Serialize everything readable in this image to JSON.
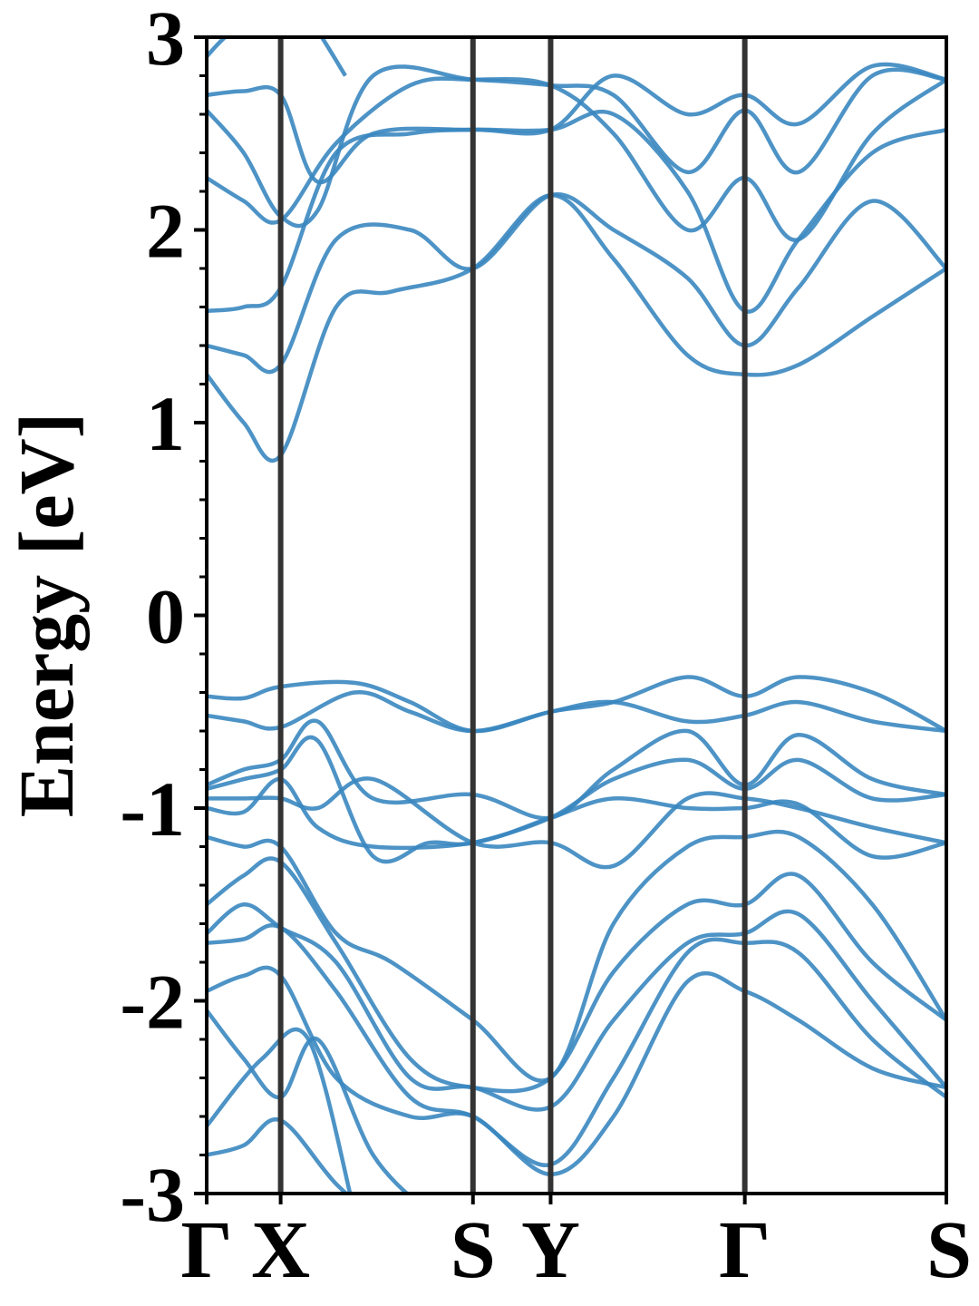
{
  "chart_data": {
    "type": "line",
    "title": "",
    "xlabel": "",
    "ylabel": "Energy [eV]",
    "ylim": [
      -3,
      3
    ],
    "yticks": [
      -3,
      -2,
      -1,
      0,
      1,
      2,
      3
    ],
    "y_minor_step": 0.2,
    "grid": false,
    "legend": "none",
    "colors": {
      "band": "#3a87c0",
      "kline": "#333333",
      "axis": "#000000"
    },
    "kpoints": [
      {
        "label": "Γ",
        "k": 0.0
      },
      {
        "label": "X",
        "k": 0.4
      },
      {
        "label": "S",
        "k": 1.44
      },
      {
        "label": "Y",
        "k": 1.86
      },
      {
        "label": "Γ",
        "k": 2.91
      },
      {
        "label": "S",
        "k": 4.0
      }
    ],
    "bands": [
      {
        "k": [
          0,
          0.2,
          0.4,
          0.7,
          1.0,
          1.44,
          1.86,
          2.2,
          2.6,
          2.91,
          3.2,
          3.6,
          4.0
        ],
        "e": [
          1.25,
          1.0,
          0.83,
          1.6,
          1.68,
          1.8,
          2.18,
          1.85,
          1.35,
          1.25,
          1.3,
          1.55,
          1.8
        ]
      },
      {
        "k": [
          0,
          0.2,
          0.4,
          0.7,
          1.1,
          1.44,
          1.86,
          2.2,
          2.6,
          2.91,
          3.2,
          3.6,
          4.0
        ],
        "e": [
          1.4,
          1.35,
          1.3,
          1.95,
          2.0,
          1.8,
          2.18,
          2.0,
          1.75,
          1.4,
          1.7,
          2.15,
          1.8
        ]
      },
      {
        "k": [
          0,
          0.2,
          0.4,
          0.7,
          1.1,
          1.44,
          1.86,
          2.2,
          2.6,
          2.91,
          3.2,
          3.6,
          4.0
        ],
        "e": [
          1.58,
          1.6,
          1.7,
          2.4,
          2.5,
          2.52,
          2.52,
          2.6,
          2.2,
          1.58,
          1.95,
          2.4,
          2.52
        ]
      },
      {
        "k": [
          0,
          0.2,
          0.4,
          0.7,
          1.1,
          1.44,
          1.86,
          2.2,
          2.6,
          2.91,
          3.2,
          3.6,
          4.0
        ],
        "e": [
          2.27,
          2.15,
          2.05,
          2.45,
          2.75,
          2.78,
          2.75,
          2.5,
          2.0,
          2.27,
          1.95,
          2.5,
          2.78
        ]
      },
      {
        "k": [
          0,
          0.2,
          0.4,
          0.6,
          0.9,
          1.44,
          1.86,
          2.2,
          2.6,
          2.91,
          3.2,
          3.6,
          4.0
        ],
        "e": [
          2.62,
          2.4,
          2.07,
          2.1,
          2.8,
          2.78,
          2.75,
          2.7,
          2.3,
          2.62,
          2.3,
          2.8,
          2.78
        ]
      },
      {
        "k": [
          0,
          0.2,
          0.4,
          0.6,
          0.9,
          1.44,
          1.86,
          2.2,
          2.6,
          2.91,
          3.2,
          3.6,
          4.0
        ],
        "e": [
          2.7,
          2.72,
          2.7,
          2.25,
          2.5,
          2.52,
          2.52,
          2.8,
          2.6,
          2.7,
          2.55,
          2.85,
          2.78
        ]
      },
      {
        "k": [
          0,
          0.1,
          0.25,
          0.4,
          0.55,
          0.75
        ],
        "e": [
          2.9,
          3.0,
          3.1,
          3.2,
          3.1,
          2.8
        ]
      },
      {
        "k": [
          0,
          0.2,
          0.4,
          0.8,
          1.1,
          1.44,
          1.86,
          2.2,
          2.6,
          2.91,
          3.2,
          3.6,
          4.0
        ],
        "e": [
          -0.42,
          -0.43,
          -0.37,
          -0.35,
          -0.45,
          -0.6,
          -0.5,
          -0.45,
          -0.32,
          -0.42,
          -0.32,
          -0.4,
          -0.6
        ]
      },
      {
        "k": [
          0,
          0.2,
          0.4,
          0.8,
          1.1,
          1.44,
          1.86,
          2.2,
          2.6,
          2.91,
          3.2,
          3.6,
          4.0
        ],
        "e": [
          -0.52,
          -0.55,
          -0.58,
          -0.4,
          -0.5,
          -0.6,
          -0.5,
          -0.45,
          -0.55,
          -0.52,
          -0.45,
          -0.55,
          -0.6
        ]
      },
      {
        "k": [
          0,
          0.2,
          0.4,
          0.6,
          0.9,
          1.44,
          1.86,
          2.2,
          2.6,
          2.91,
          3.2,
          3.6,
          4.0
        ],
        "e": [
          -0.88,
          -0.8,
          -0.75,
          -0.55,
          -0.95,
          -0.93,
          -1.05,
          -0.8,
          -0.6,
          -0.88,
          -0.62,
          -0.85,
          -0.93
        ]
      },
      {
        "k": [
          0,
          0.2,
          0.4,
          0.6,
          0.9,
          1.2,
          1.44,
          1.86,
          2.2,
          2.6,
          2.91,
          3.2,
          3.6,
          4.0
        ],
        "e": [
          -0.9,
          -0.85,
          -0.8,
          -0.65,
          -1.25,
          -1.18,
          -1.18,
          -1.05,
          -0.85,
          -0.75,
          -0.9,
          -0.75,
          -0.95,
          -0.93
        ]
      },
      {
        "k": [
          0,
          0.2,
          0.4,
          0.6,
          0.9,
          1.44,
          1.86,
          2.2,
          2.6,
          2.91,
          3.2,
          3.6,
          4.0
        ],
        "e": [
          -0.95,
          -0.95,
          -0.95,
          -1.0,
          -0.85,
          -1.18,
          -1.18,
          -1.3,
          -0.95,
          -0.95,
          -1.0,
          -1.1,
          -1.18
        ]
      },
      {
        "k": [
          0,
          0.2,
          0.4,
          0.6,
          0.9,
          1.44,
          1.86,
          2.2,
          2.6,
          2.91,
          3.2,
          3.6,
          4.0
        ],
        "e": [
          -1.0,
          -1.02,
          -0.85,
          -1.1,
          -1.2,
          -1.18,
          -1.05,
          -0.95,
          -1.0,
          -1.0,
          -0.98,
          -1.25,
          -1.18
        ]
      },
      {
        "k": [
          0,
          0.2,
          0.4,
          0.7,
          1.0,
          1.44,
          1.86,
          2.2,
          2.6,
          2.91,
          3.2,
          3.6,
          4.0
        ],
        "e": [
          -1.15,
          -1.2,
          -1.2,
          -1.65,
          -1.8,
          -2.1,
          -2.4,
          -1.6,
          -1.2,
          -1.15,
          -1.15,
          -1.5,
          -2.1
        ]
      },
      {
        "k": [
          0,
          0.2,
          0.4,
          0.7,
          1.1,
          1.44,
          1.86,
          2.2,
          2.6,
          2.91,
          3.2,
          3.6,
          4.0
        ],
        "e": [
          -1.5,
          -1.35,
          -1.28,
          -1.7,
          -2.3,
          -2.45,
          -2.4,
          -1.85,
          -1.5,
          -1.5,
          -1.35,
          -1.8,
          -2.1
        ]
      },
      {
        "k": [
          0,
          0.2,
          0.4,
          0.7,
          1.1,
          1.44,
          1.86,
          2.2,
          2.6,
          2.91,
          3.2,
          3.6,
          4.0
        ],
        "e": [
          -1.65,
          -1.5,
          -1.62,
          -1.8,
          -2.4,
          -2.45,
          -2.55,
          -2.1,
          -1.7,
          -1.65,
          -1.55,
          -2.0,
          -2.45
        ]
      },
      {
        "k": [
          0,
          0.2,
          0.4,
          0.7,
          1.1,
          1.44,
          1.86,
          2.2,
          2.6,
          2.91,
          3.2,
          3.6,
          4.0
        ],
        "e": [
          -1.7,
          -1.68,
          -1.62,
          -1.95,
          -2.5,
          -2.6,
          -2.85,
          -2.4,
          -1.75,
          -1.7,
          -1.75,
          -2.2,
          -2.5
        ]
      },
      {
        "k": [
          0,
          0.2,
          0.4,
          0.7,
          1.1,
          1.44,
          1.86,
          2.2,
          2.6,
          2.91,
          3.2,
          3.6,
          4.0
        ],
        "e": [
          -1.95,
          -1.87,
          -1.87,
          -2.4,
          -2.6,
          -2.6,
          -2.9,
          -2.6,
          -1.9,
          -1.95,
          -2.1,
          -2.35,
          -2.45
        ]
      },
      {
        "k": [
          0,
          0.2,
          0.4,
          0.6,
          0.9,
          1.2
        ],
        "e": [
          -2.05,
          -2.3,
          -2.5,
          -2.2,
          -2.8,
          -3.1
        ]
      },
      {
        "k": [
          0,
          0.2,
          0.4,
          0.7,
          1.0
        ],
        "e": [
          -2.8,
          -2.75,
          -2.62,
          -2.95,
          -3.2
        ]
      },
      {
        "k": [
          0,
          0.3,
          0.55,
          0.8
        ],
        "e": [
          -2.65,
          -2.3,
          -2.2,
          -3.1
        ]
      }
    ]
  }
}
